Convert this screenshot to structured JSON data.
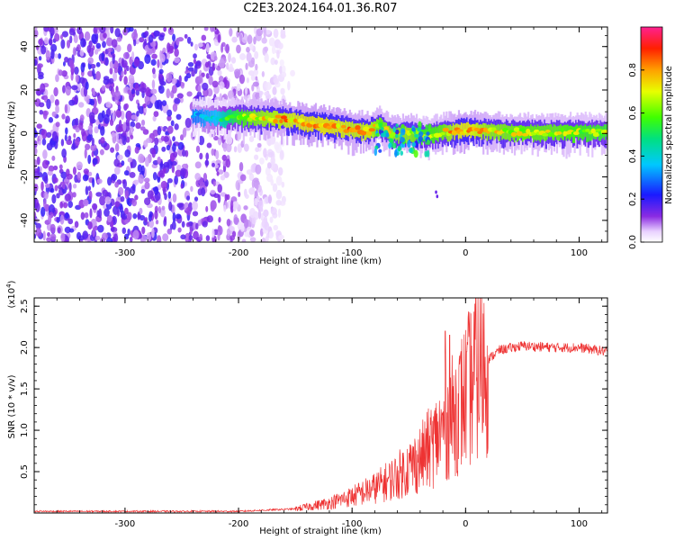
{
  "title": "C2E3.2024.164.01.36.R07",
  "chart_data": [
    {
      "type": "heatmap",
      "title": "C2E3.2024.164.01.36.R07",
      "xlabel": "Height of straight line (km)",
      "ylabel": "Frequency (Hz)",
      "xlim": [
        -380,
        125
      ],
      "ylim": [
        -50,
        49
      ],
      "xticks": [
        -300,
        -200,
        -100,
        0,
        100
      ],
      "yticks": [
        -40,
        -20,
        0,
        20,
        40
      ],
      "grid": false,
      "colorbar": {
        "label": "Normalized spectral amplitude",
        "range": [
          0,
          1
        ],
        "ticks": [
          "0.0",
          "0.2",
          "0.4",
          "0.6",
          "0.8"
        ],
        "colormap": "rainbow"
      },
      "features": {
        "noise_region_x": [
          -380,
          -160
        ],
        "ridge": [
          {
            "x": -240,
            "y": 8,
            "amp": 0.35
          },
          {
            "x": -220,
            "y": 7,
            "amp": 0.45
          },
          {
            "x": -200,
            "y": 7.5,
            "amp": 0.7
          },
          {
            "x": -180,
            "y": 7,
            "amp": 0.8
          },
          {
            "x": -160,
            "y": 6.5,
            "amp": 0.85
          },
          {
            "x": -140,
            "y": 5,
            "amp": 0.9
          },
          {
            "x": -120,
            "y": 3.5,
            "amp": 0.9
          },
          {
            "x": -100,
            "y": 2,
            "amp": 0.85
          },
          {
            "x": -85,
            "y": 1,
            "amp": 0.85
          },
          {
            "x": -75,
            "y": 4,
            "amp": 0.75
          },
          {
            "x": -65,
            "y": -1,
            "amp": 0.8
          },
          {
            "x": -50,
            "y": 0,
            "amp": 0.8
          },
          {
            "x": -35,
            "y": -1,
            "amp": 0.7
          },
          {
            "x": -20,
            "y": 0.5,
            "amp": 0.75
          },
          {
            "x": -10,
            "y": 1,
            "amp": 0.85
          },
          {
            "x": 0,
            "y": 1.5,
            "amp": 0.9
          },
          {
            "x": 20,
            "y": 1,
            "amp": 0.8
          },
          {
            "x": 50,
            "y": 0.5,
            "amp": 0.75
          },
          {
            "x": 80,
            "y": 0.5,
            "amp": 0.75
          },
          {
            "x": 110,
            "y": 0.5,
            "amp": 0.7
          },
          {
            "x": 125,
            "y": 0.5,
            "amp": 0.7
          }
        ]
      }
    },
    {
      "type": "line",
      "xlabel": "Height of straight line (km)",
      "ylabel": "SNR (10 * v/v)",
      "y_multiplier": "(x10",
      "y_multiplier_exp": "4",
      "xlim": [
        -380,
        125
      ],
      "ylim": [
        0,
        2.6
      ],
      "xticks": [
        -300,
        -200,
        -100,
        0,
        100
      ],
      "yticks": [
        "0.5",
        "1.0",
        "1.5",
        "2.0",
        "2.5"
      ],
      "grid": false,
      "series_color": "#ee3333",
      "trend": [
        {
          "x": -380,
          "y": 0.02
        },
        {
          "x": -200,
          "y": 0.02
        },
        {
          "x": -150,
          "y": 0.05
        },
        {
          "x": -120,
          "y": 0.12
        },
        {
          "x": -100,
          "y": 0.2
        },
        {
          "x": -80,
          "y": 0.3
        },
        {
          "x": -60,
          "y": 0.45
        },
        {
          "x": -40,
          "y": 0.65
        },
        {
          "x": -25,
          "y": 0.9
        },
        {
          "x": -15,
          "y": 1.1
        },
        {
          "x": -5,
          "y": 1.3
        },
        {
          "x": 5,
          "y": 1.55
        },
        {
          "x": 15,
          "y": 1.8
        },
        {
          "x": 30,
          "y": 1.97
        },
        {
          "x": 50,
          "y": 2.02
        },
        {
          "x": 80,
          "y": 2.0
        },
        {
          "x": 100,
          "y": 2.0
        },
        {
          "x": 125,
          "y": 1.95
        }
      ],
      "spikes": [
        {
          "x": -18,
          "y": 2.2
        },
        {
          "x": -14,
          "y": 2.15
        },
        {
          "x": 9,
          "y": 2.6
        },
        {
          "x": 1,
          "y": 1.95
        }
      ]
    }
  ]
}
